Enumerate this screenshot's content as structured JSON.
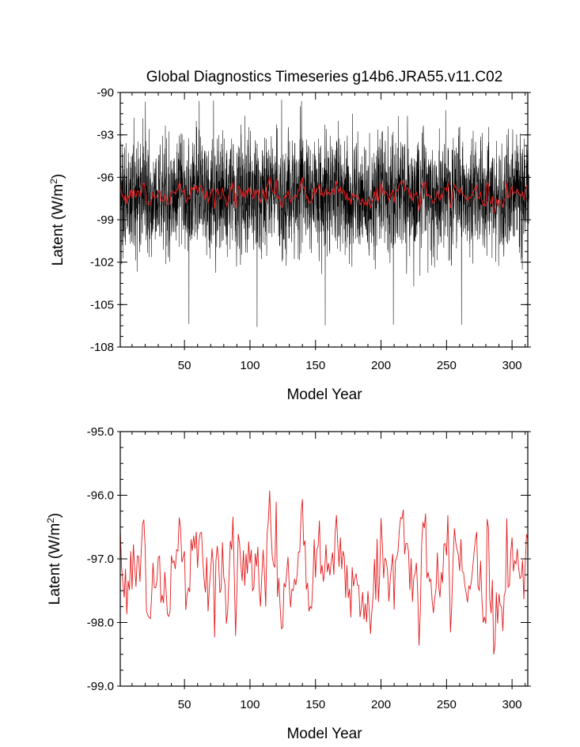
{
  "chart_data": [
    {
      "type": "line",
      "title": "Global Diagnostics Timeseries g14b6.JRA55.v11.C02",
      "xlabel": "Model Year",
      "ylabel": "Latent (W/m",
      "ylabel_sup": "2",
      "ylabel_close": ")",
      "xlim": [
        1,
        312
      ],
      "ylim": [
        -108,
        -90
      ],
      "xticks": [
        50,
        100,
        150,
        200,
        250,
        300
      ],
      "yticks": [
        -108,
        -105,
        -102,
        -99,
        -96,
        -93,
        -90
      ],
      "yticklabels": [
        "-108",
        "-105",
        "-102",
        "-99",
        "-96",
        "-93",
        "-90"
      ],
      "series": [
        {
          "color": "#000000",
          "kind": "monthly",
          "mean": -97.0,
          "min": -106.6,
          "max": -90.5,
          "points": 3744
        },
        {
          "color": "#e41a1c",
          "kind": "annual-mean"
        }
      ]
    },
    {
      "type": "line",
      "xlabel": "Model Year",
      "ylabel": "Latent (W/m",
      "ylabel_sup": "2",
      "ylabel_close": ")",
      "xlim": [
        1,
        312
      ],
      "ylim": [
        -99.0,
        -95.0
      ],
      "xticks": [
        50,
        100,
        150,
        200,
        250,
        300
      ],
      "yticks": [
        -99.0,
        -98.0,
        -97.0,
        -96.0,
        -95.0
      ],
      "yticklabels": [
        "-99.0",
        "-98.0",
        "-97.0",
        "-96.0",
        "-95.0"
      ],
      "series": [
        {
          "color": "#e41a1c",
          "kind": "annual-mean",
          "mean": -97.2,
          "min": -98.55,
          "max": -95.75,
          "points": 312
        }
      ]
    }
  ]
}
